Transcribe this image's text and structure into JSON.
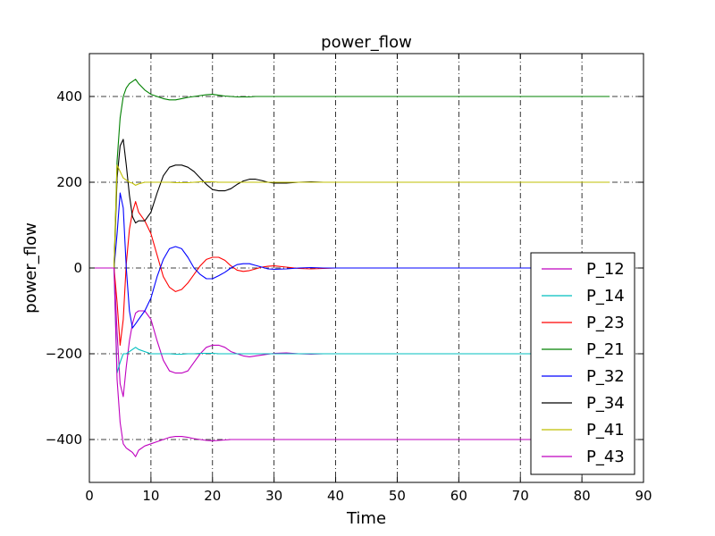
{
  "chart_data": {
    "type": "line",
    "title": "power_flow",
    "xlabel": "Time",
    "ylabel": "power_flow",
    "xlim": [
      0,
      90
    ],
    "ylim": [
      -500,
      500
    ],
    "xticks": [
      0,
      10,
      20,
      30,
      40,
      50,
      60,
      70,
      80,
      90
    ],
    "yticks": [
      -400,
      -200,
      0,
      200,
      400
    ],
    "xtick_labels": [
      "0",
      "10",
      "20",
      "30",
      "40",
      "50",
      "60",
      "70",
      "80",
      "90"
    ],
    "ytick_labels": [
      "−400",
      "−200",
      "0",
      "200",
      "400"
    ],
    "grid": true,
    "legend_position": "lower-right",
    "x": [
      0,
      4,
      4.5,
      5,
      5.5,
      6,
      6.5,
      7,
      7.5,
      8,
      9,
      10,
      11,
      12,
      13,
      14,
      15,
      16,
      17,
      18,
      19,
      20,
      21,
      22,
      23,
      24,
      25,
      26,
      27,
      28,
      29,
      30,
      32,
      34,
      36,
      38,
      40,
      45,
      50,
      60,
      70,
      84.5
    ],
    "series": [
      {
        "name": "P_12",
        "color": "#bf00bf",
        "values": [
          0,
          0,
          -150,
          -270,
          -300,
          -230,
          -170,
          -130,
          -105,
          -100,
          -100,
          -120,
          -170,
          -215,
          -240,
          -245,
          -245,
          -240,
          -220,
          -200,
          -185,
          -180,
          -180,
          -185,
          -195,
          -200,
          -205,
          -207,
          -205,
          -203,
          -201,
          -199,
          -198,
          -200,
          -201,
          -200,
          -200,
          -200,
          -200,
          -200,
          -200,
          -200
        ]
      },
      {
        "name": "P_14",
        "color": "#00bfbf",
        "values": [
          0,
          0,
          -245,
          -220,
          -200,
          -200,
          -195,
          -190,
          -185,
          -190,
          -195,
          -200,
          -200,
          -200,
          -200,
          -201,
          -201,
          -200,
          -200,
          -199,
          -199,
          -199,
          -200,
          -200,
          -200,
          -200,
          -200,
          -200,
          -200,
          -200,
          -200,
          -200,
          -200,
          -200,
          -200,
          -200,
          -200,
          -200,
          -200,
          -200,
          -200,
          -200
        ]
      },
      {
        "name": "P_23",
        "color": "#ff0000",
        "values": [
          0,
          0,
          -80,
          -180,
          -120,
          10,
          90,
          130,
          155,
          130,
          110,
          80,
          30,
          -20,
          -45,
          -55,
          -50,
          -35,
          -15,
          5,
          20,
          25,
          25,
          18,
          5,
          -5,
          -8,
          -6,
          -2,
          2,
          4,
          5,
          2,
          -1,
          -2,
          -1,
          0,
          0,
          0,
          0,
          0,
          0
        ]
      },
      {
        "name": "P_21",
        "color": "#008000",
        "values": [
          0,
          0,
          250,
          350,
          400,
          420,
          430,
          435,
          440,
          430,
          415,
          405,
          400,
          395,
          392,
          392,
          395,
          398,
          400,
          402,
          404,
          405,
          403,
          401,
          400,
          399,
          399,
          399,
          400,
          400,
          400,
          400,
          400,
          400,
          400,
          400,
          400,
          400,
          400,
          400,
          400,
          400
        ]
      },
      {
        "name": "P_32",
        "color": "#0000ff",
        "values": [
          0,
          0,
          80,
          175,
          140,
          0,
          -100,
          -140,
          -130,
          -120,
          -100,
          -70,
          -20,
          20,
          45,
          50,
          45,
          25,
          0,
          -15,
          -25,
          -25,
          -18,
          -10,
          0,
          8,
          10,
          10,
          6,
          2,
          -2,
          -3,
          -2,
          0,
          1,
          0,
          0,
          0,
          0,
          0,
          0,
          0
        ]
      },
      {
        "name": "P_34",
        "color": "#000000",
        "values": [
          0,
          0,
          210,
          285,
          300,
          240,
          170,
          120,
          105,
          110,
          110,
          130,
          175,
          215,
          235,
          240,
          240,
          235,
          225,
          210,
          195,
          183,
          180,
          180,
          185,
          195,
          203,
          207,
          207,
          204,
          200,
          198,
          198,
          200,
          201,
          200,
          200,
          200,
          200,
          200,
          200,
          200
        ]
      },
      {
        "name": "P_41",
        "color": "#bfbf00",
        "values": [
          0,
          0,
          240,
          225,
          210,
          205,
          200,
          198,
          193,
          196,
          200,
          200,
          200,
          200,
          200,
          199,
          199,
          199,
          200,
          201,
          201,
          201,
          200,
          200,
          200,
          200,
          200,
          200,
          200,
          200,
          200,
          200,
          200,
          200,
          200,
          200,
          200,
          200,
          200,
          200,
          200,
          200
        ]
      },
      {
        "name": "P_43",
        "color": "#bf00bf",
        "values": [
          0,
          0,
          -260,
          -360,
          -410,
          -420,
          -425,
          -430,
          -440,
          -425,
          -415,
          -410,
          -405,
          -400,
          -395,
          -393,
          -393,
          -395,
          -398,
          -400,
          -402,
          -403,
          -402,
          -401,
          -400,
          -400,
          -400,
          -400,
          -400,
          -400,
          -400,
          -400,
          -400,
          -400,
          -400,
          -400,
          -400,
          -400,
          -400,
          -400,
          -400,
          -400
        ]
      }
    ]
  }
}
